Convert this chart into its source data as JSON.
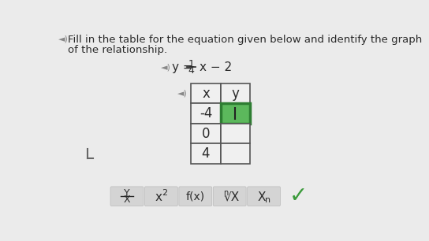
{
  "background_color": "#ebebeb",
  "text_color": "#2a2a2a",
  "speaker_color": "#888888",
  "table_bg": "#f0f0f0",
  "table_border": "#555555",
  "highlighted_cell_color": "#5cb85c",
  "highlighted_cell_border": "#2e7d32",
  "table_header": [
    "x",
    "y"
  ],
  "table_x_values": [
    "-4",
    "0",
    "4"
  ],
  "button_bg": "#d4d4d4",
  "checkmark_color": "#3a9a3a",
  "title_line1": "Fill in the table for the equation given below and identify the graph",
  "title_line2": "of the relationship.",
  "eq_num": "1",
  "eq_den": "4"
}
